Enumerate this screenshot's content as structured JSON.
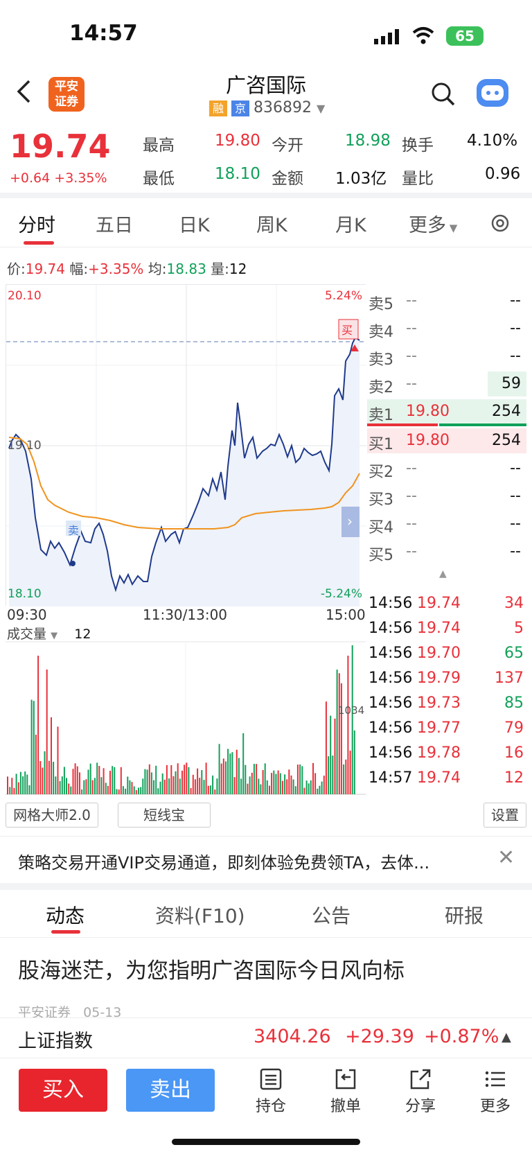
{
  "status": {
    "time": "14:57",
    "battery": "65"
  },
  "header": {
    "logo_line1": "平安",
    "logo_line2": "证券",
    "title": "广咨国际",
    "tag1": "融",
    "tag2": "京",
    "code": "836892"
  },
  "quote": {
    "price": "19.74",
    "change": "+0.64",
    "change_pct": "+3.35%",
    "high_label": "最高",
    "high": "19.80",
    "open_label": "今开",
    "open": "18.98",
    "turnover_label": "换手",
    "turnover": "4.10%",
    "low_label": "最低",
    "low": "18.10",
    "amount_label": "金额",
    "amount": "1.03亿",
    "ratio_label": "量比",
    "ratio": "0.96"
  },
  "tabs": [
    {
      "label": "分时"
    },
    {
      "label": "五日"
    },
    {
      "label": "日K"
    },
    {
      "label": "周K"
    },
    {
      "label": "月K"
    },
    {
      "label": "更多"
    }
  ],
  "infoline": {
    "price_label": "价:",
    "price": "19.74",
    "amp_label": "幅:",
    "amp": "+3.35%",
    "avg_label": "均:",
    "avg": "18.83",
    "vol_label": "量:",
    "vol": "12"
  },
  "chart_labels": {
    "ymax": "20.10",
    "ymax_pct": "5.24%",
    "ymid": "19.10",
    "ymin": "18.10",
    "ymin_pct": "-5.24%",
    "t_start": "09:30",
    "t_mid": "11:30/13:00",
    "t_end": "15:00",
    "buy_mark": "买",
    "sell_mark": "卖",
    "vol_peak": "1034"
  },
  "orderbook": {
    "sell": [
      {
        "label": "卖5",
        "price": "--",
        "vol": "--"
      },
      {
        "label": "卖4",
        "price": "--",
        "vol": "--"
      },
      {
        "label": "卖3",
        "price": "--",
        "vol": "--"
      },
      {
        "label": "卖2",
        "price": "--",
        "vol": "59"
      },
      {
        "label": "卖1",
        "price": "19.80",
        "vol": "254"
      }
    ],
    "buy": [
      {
        "label": "买1",
        "price": "19.80",
        "vol": "254"
      },
      {
        "label": "买2",
        "price": "--",
        "vol": "--"
      },
      {
        "label": "买3",
        "price": "--",
        "vol": "--"
      },
      {
        "label": "买4",
        "price": "--",
        "vol": "--"
      },
      {
        "label": "买5",
        "price": "--",
        "vol": "--"
      }
    ]
  },
  "ticks": [
    {
      "time": "14:56",
      "price": "19.74",
      "vol": "34",
      "side": "red"
    },
    {
      "time": "14:56",
      "price": "19.74",
      "vol": "5",
      "side": "red"
    },
    {
      "time": "14:56",
      "price": "19.70",
      "vol": "65",
      "side": "green"
    },
    {
      "time": "14:56",
      "price": "19.79",
      "vol": "137",
      "side": "red"
    },
    {
      "time": "14:56",
      "price": "19.73",
      "vol": "85",
      "side": "green"
    },
    {
      "time": "14:56",
      "price": "19.77",
      "vol": "79",
      "side": "red"
    },
    {
      "time": "14:56",
      "price": "19.78",
      "vol": "16",
      "side": "red"
    },
    {
      "time": "14:57",
      "price": "19.74",
      "vol": "12",
      "side": "red"
    }
  ],
  "volume": {
    "label": "成交量",
    "value": "12"
  },
  "tools_row": {
    "grid": "网格大师2.0",
    "short": "短线宝",
    "settings": "设置"
  },
  "promo": {
    "text": "策略交易开通VIP交易通道，即刻体验免费领TA，去体..."
  },
  "bottom_tabs": [
    {
      "label": "动态"
    },
    {
      "label": "资料(F10)"
    },
    {
      "label": "公告"
    },
    {
      "label": "研报"
    }
  ],
  "news": {
    "title": "股海迷茫，为您指明广咨国际今日风向标",
    "source": "平安证券",
    "date": "05-13"
  },
  "index": {
    "name": "上证指数",
    "value": "3404.26",
    "change": "+29.39",
    "pct": "+0.87%"
  },
  "actions": {
    "buy": "买入",
    "sell": "卖出",
    "position": "持仓",
    "cancel": "撤单",
    "share": "分享",
    "more": "更多"
  },
  "colors": {
    "up": "#e8313a",
    "down": "#11a05a",
    "price_line": "#1f3a8c",
    "avg_line": "#f0931e"
  }
}
